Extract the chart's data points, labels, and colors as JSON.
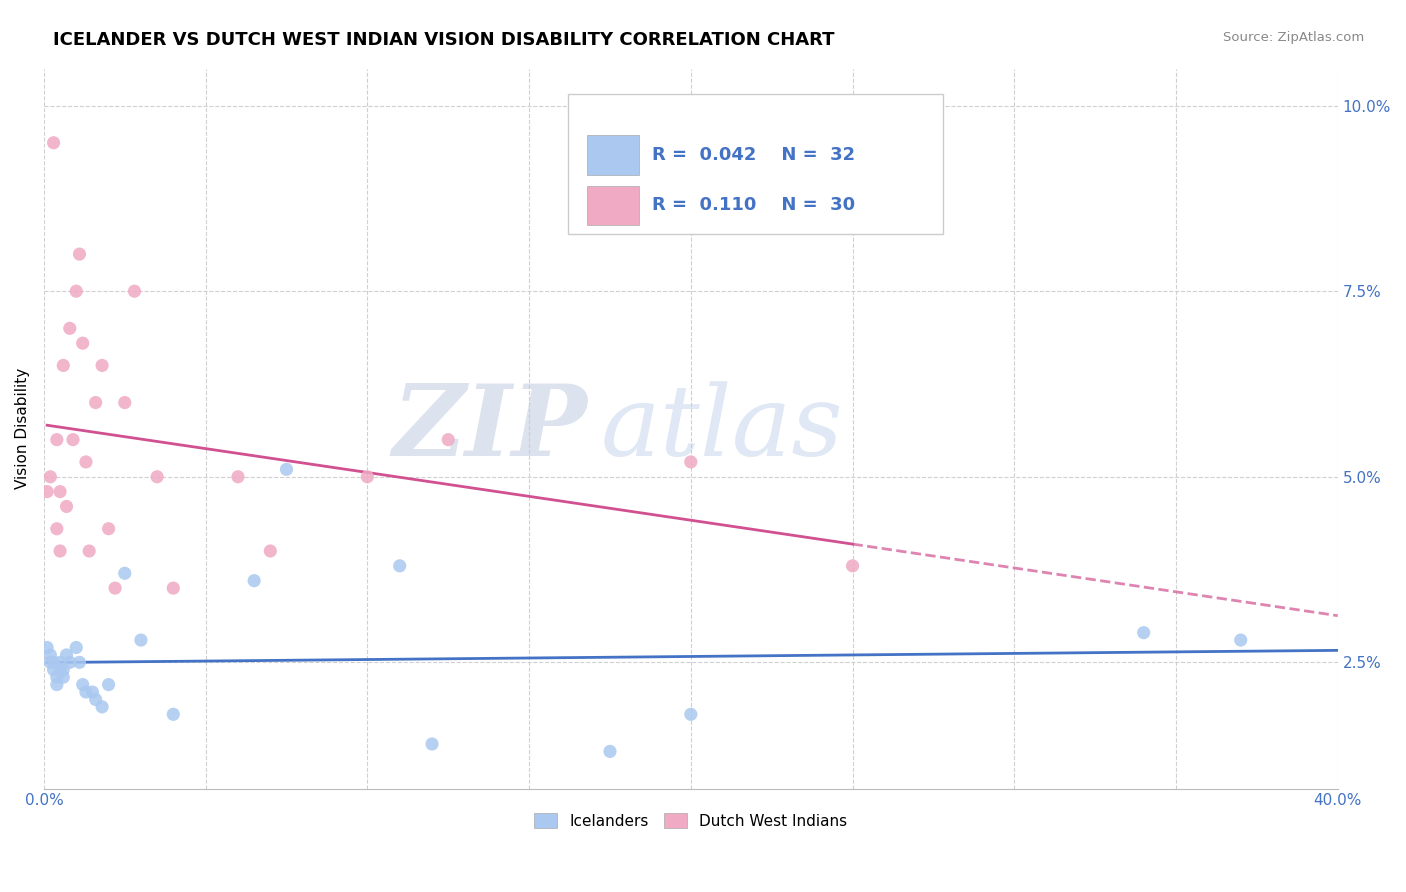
{
  "title": "ICELANDER VS DUTCH WEST INDIAN VISION DISABILITY CORRELATION CHART",
  "source": "Source: ZipAtlas.com",
  "ylabel": "Vision Disability",
  "xlim": [
    0.0,
    0.4
  ],
  "ylim": [
    0.008,
    0.105
  ],
  "yticks": [
    0.025,
    0.05,
    0.075,
    0.1
  ],
  "ytick_labels": [
    "2.5%",
    "5.0%",
    "7.5%",
    "10.0%"
  ],
  "xticks": [
    0.0,
    0.05,
    0.1,
    0.15,
    0.2,
    0.25,
    0.3,
    0.35,
    0.4
  ],
  "xtick_labels": [
    "0.0%",
    "",
    "",
    "",
    "",
    "",
    "",
    "",
    "40.0%"
  ],
  "blue_R": 0.042,
  "blue_N": 32,
  "pink_R": 0.11,
  "pink_N": 30,
  "blue_color": "#aac8f0",
  "pink_color": "#f0aac4",
  "blue_line_color": "#4472C4",
  "pink_line_color": "#d05090",
  "watermark_zip": "ZIP",
  "watermark_atlas": "atlas",
  "icelanders_x": [
    0.001,
    0.002,
    0.002,
    0.003,
    0.003,
    0.004,
    0.004,
    0.005,
    0.005,
    0.006,
    0.006,
    0.007,
    0.008,
    0.01,
    0.011,
    0.012,
    0.013,
    0.015,
    0.016,
    0.018,
    0.02,
    0.025,
    0.03,
    0.04,
    0.065,
    0.075,
    0.11,
    0.12,
    0.175,
    0.2,
    0.34,
    0.37
  ],
  "icelanders_y": [
    0.027,
    0.026,
    0.025,
    0.024,
    0.025,
    0.023,
    0.022,
    0.024,
    0.025,
    0.024,
    0.023,
    0.026,
    0.025,
    0.027,
    0.025,
    0.022,
    0.021,
    0.021,
    0.02,
    0.019,
    0.022,
    0.037,
    0.028,
    0.018,
    0.036,
    0.051,
    0.038,
    0.014,
    0.013,
    0.018,
    0.029,
    0.028
  ],
  "dutch_x": [
    0.001,
    0.002,
    0.003,
    0.004,
    0.004,
    0.005,
    0.005,
    0.006,
    0.007,
    0.008,
    0.009,
    0.01,
    0.011,
    0.012,
    0.013,
    0.014,
    0.016,
    0.018,
    0.02,
    0.022,
    0.025,
    0.028,
    0.035,
    0.04,
    0.06,
    0.07,
    0.1,
    0.125,
    0.2,
    0.25
  ],
  "dutch_y": [
    0.048,
    0.05,
    0.095,
    0.043,
    0.055,
    0.048,
    0.04,
    0.065,
    0.046,
    0.07,
    0.055,
    0.075,
    0.08,
    0.068,
    0.052,
    0.04,
    0.06,
    0.065,
    0.043,
    0.035,
    0.06,
    0.075,
    0.05,
    0.035,
    0.05,
    0.04,
    0.05,
    0.055,
    0.052,
    0.038
  ]
}
